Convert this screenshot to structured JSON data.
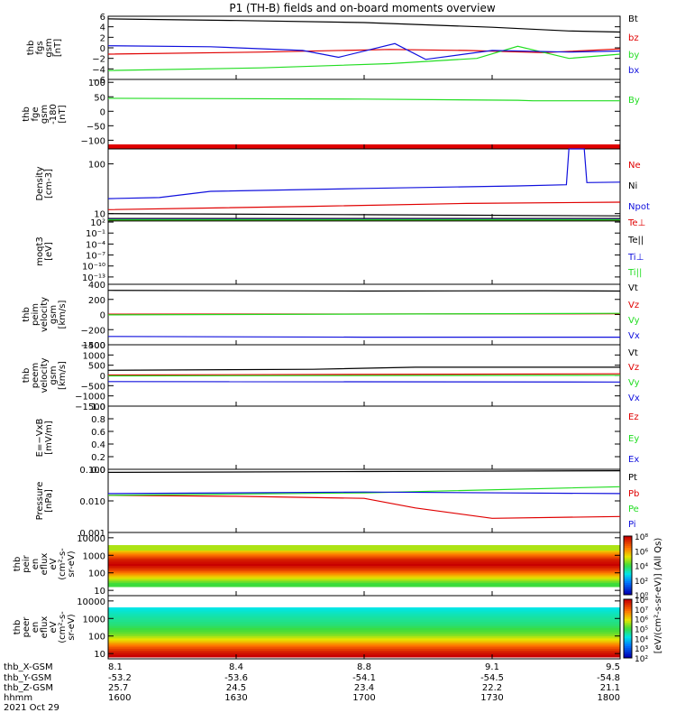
{
  "title": "P1 (TH-B) fields and on-board moments overview",
  "colors": {
    "black": "#000000",
    "red": "#e00000",
    "green": "#22dd22",
    "blue": "#1010dd",
    "darkred": "#bb0000"
  },
  "chart_data": {
    "type": "line",
    "time_range": [
      "16:00",
      "18:00"
    ],
    "panels": [
      {
        "id": "fgs",
        "ylabel_lines": [
          "thb",
          "fgs",
          "gsm",
          "[nT]"
        ],
        "ylim": [
          -6,
          6
        ],
        "ticks": [
          "6",
          "4",
          "2",
          "0",
          "−2",
          "−4",
          "−6"
        ],
        "tick_values": [
          6,
          4,
          2,
          0,
          -2,
          -4,
          -6
        ],
        "series": [
          {
            "name": "Bt",
            "color": "black",
            "points": [
              [
                0,
                5.5
              ],
              [
                0.25,
                5.2
              ],
              [
                0.5,
                4.8
              ],
              [
                0.75,
                3.9
              ],
              [
                0.9,
                3.2
              ],
              [
                1,
                3.0
              ]
            ]
          },
          {
            "name": "bz",
            "color": "red",
            "points": [
              [
                0,
                -1.2
              ],
              [
                0.3,
                -0.8
              ],
              [
                0.55,
                -0.3
              ],
              [
                0.7,
                -0.5
              ],
              [
                0.85,
                -0.9
              ],
              [
                1,
                -0.2
              ]
            ]
          },
          {
            "name": "by",
            "color": "green",
            "points": [
              [
                0,
                -4.3
              ],
              [
                0.3,
                -3.8
              ],
              [
                0.55,
                -3.0
              ],
              [
                0.72,
                -2.0
              ],
              [
                0.8,
                0.3
              ],
              [
                0.9,
                -2.0
              ],
              [
                1,
                -1.2
              ]
            ]
          },
          {
            "name": "bx",
            "color": "blue",
            "points": [
              [
                0,
                0.4
              ],
              [
                0.2,
                0.2
              ],
              [
                0.38,
                -0.5
              ],
              [
                0.45,
                -1.8
              ],
              [
                0.56,
                0.8
              ],
              [
                0.62,
                -2.2
              ],
              [
                0.75,
                -0.5
              ],
              [
                0.9,
                -0.8
              ],
              [
                1,
                -0.6
              ]
            ]
          }
        ]
      },
      {
        "id": "fge",
        "ylabel_lines": [
          "thb",
          "fge",
          "gsm",
          "-180",
          "[nT]"
        ],
        "ylim": [
          -130,
          110
        ],
        "ticks": [
          "100",
          "50",
          "0",
          "−50",
          "−100"
        ],
        "tick_values": [
          100,
          50,
          0,
          -50,
          -100
        ],
        "series": [
          {
            "name": "By",
            "color": "green",
            "points": [
              [
                0,
                45
              ],
              [
                0.5,
                42
              ],
              [
                0.8,
                38
              ],
              [
                0.83,
                36
              ],
              [
                1,
                36
              ]
            ]
          }
        ]
      },
      {
        "id": "density",
        "ylabel_lines": [
          "Density",
          "[cm-3]"
        ],
        "log": true,
        "ylim": [
          8,
          200
        ],
        "ticks": [
          "100",
          "10"
        ],
        "tick_values": [
          100,
          10
        ],
        "series": [
          {
            "name": "Ne",
            "color": "red",
            "points": [
              [
                0,
                12
              ],
              [
                0.4,
                14
              ],
              [
                0.7,
                16
              ],
              [
                1,
                17
              ]
            ]
          },
          {
            "name": "Ni",
            "color": "black",
            "points": [
              [
                0,
                10
              ],
              [
                0.5,
                9.5
              ],
              [
                1,
                9
              ]
            ]
          },
          {
            "name": "Npot",
            "color": "blue",
            "points": [
              [
                0,
                20
              ],
              [
                0.1,
                21
              ],
              [
                0.2,
                28
              ],
              [
                0.5,
                32
              ],
              [
                0.8,
                36
              ],
              [
                0.895,
                38
              ],
              [
                0.9,
                200
              ],
              [
                0.93,
                200
              ],
              [
                0.935,
                42
              ],
              [
                1,
                43
              ]
            ]
          }
        ]
      },
      {
        "id": "moqt",
        "ylabel_lines": [
          "moqt3",
          "[eV]"
        ],
        "log": true,
        "ylim": [
          1e-15,
          1000.0
        ],
        "ticks": [
          "10²",
          "10⁻¹",
          "10⁻⁴",
          "10⁻⁷",
          "10⁻¹⁰",
          "10⁻¹³"
        ],
        "tick_values": [
          100,
          0.1,
          0.0001,
          1e-07,
          1e-10,
          1e-13
        ],
        "series": [
          {
            "name": "Te⊥",
            "color": "red",
            "points": [
              [
                0,
                300
              ],
              [
                1,
                300
              ]
            ]
          },
          {
            "name": "Te||",
            "color": "black",
            "points": [
              [
                0,
                200
              ],
              [
                1,
                200
              ]
            ]
          },
          {
            "name": "Ti⊥",
            "color": "blue",
            "points": [
              [
                0,
                500
              ],
              [
                1,
                500
              ]
            ]
          },
          {
            "name": "Ti||",
            "color": "green",
            "points": [
              [
                0,
                400
              ],
              [
                1,
                400
              ]
            ]
          }
        ]
      },
      {
        "id": "peim",
        "ylabel_lines": [
          "thb",
          "peim",
          "velocity",
          "gsm",
          "[km/s]"
        ],
        "ylim": [
          -400,
          400
        ],
        "ticks": [
          "400",
          "200",
          "0",
          "−200",
          "−400"
        ],
        "tick_values": [
          400,
          200,
          0,
          -200,
          -400
        ],
        "series": [
          {
            "name": "Vt",
            "color": "black",
            "points": [
              [
                0,
                320
              ],
              [
                0.5,
                310
              ],
              [
                0.85,
                315
              ],
              [
                1,
                310
              ]
            ]
          },
          {
            "name": "Vz",
            "color": "red",
            "points": [
              [
                0,
                5
              ],
              [
                1,
                10
              ]
            ]
          },
          {
            "name": "Vy",
            "color": "green",
            "points": [
              [
                0,
                -5
              ],
              [
                1,
                15
              ]
            ]
          },
          {
            "name": "Vx",
            "color": "blue",
            "points": [
              [
                0,
                -290
              ],
              [
                0.5,
                -300
              ],
              [
                1,
                -300
              ]
            ]
          }
        ]
      },
      {
        "id": "peem",
        "ylabel_lines": [
          "thb",
          "peem",
          "velocity",
          "gsm",
          "[km/s]"
        ],
        "ylim": [
          -1500,
          1500
        ],
        "ticks": [
          "1500",
          "1000",
          "500",
          "0",
          "−500",
          "−1000",
          "−1500"
        ],
        "tick_values": [
          1500,
          1000,
          500,
          0,
          -500,
          -1000,
          -1500
        ],
        "series": [
          {
            "name": "Vt",
            "color": "black",
            "points": [
              [
                0,
                250
              ],
              [
                0.4,
                300
              ],
              [
                0.6,
                400
              ],
              [
                1,
                400
              ]
            ]
          },
          {
            "name": "Vz",
            "color": "red",
            "points": [
              [
                0,
                20
              ],
              [
                1,
                80
              ]
            ]
          },
          {
            "name": "Vy",
            "color": "green",
            "points": [
              [
                0,
                -20
              ],
              [
                1,
                10
              ]
            ]
          },
          {
            "name": "Vx",
            "color": "blue",
            "points": [
              [
                0,
                -300
              ],
              [
                1,
                -320
              ]
            ]
          }
        ]
      },
      {
        "id": "efield",
        "ylabel_lines": [
          "E=−VxB",
          "[mV/m]"
        ],
        "ylim": [
          0,
          1
        ],
        "ticks": [
          "1.0",
          "0.8",
          "0.6",
          "0.4",
          "0.2",
          "0.0"
        ],
        "tick_values": [
          1,
          0.8,
          0.6,
          0.4,
          0.2,
          0
        ],
        "series": [
          {
            "name": "Ez",
            "color": "red",
            "points": []
          },
          {
            "name": "Ey",
            "color": "green",
            "points": []
          },
          {
            "name": "Ex",
            "color": "blue",
            "points": []
          }
        ]
      },
      {
        "id": "pressure",
        "ylabel_lines": [
          "Pressure",
          "[nPa]"
        ],
        "log": true,
        "ylim": [
          0.001,
          0.1
        ],
        "ticks": [
          "0.100",
          "0.010",
          "0.001"
        ],
        "tick_values": [
          0.1,
          0.01,
          0.001
        ],
        "series": [
          {
            "name": "Pt",
            "color": "black",
            "points": [
              [
                0,
                0.08
              ],
              [
                0.5,
                0.085
              ],
              [
                1,
                0.09
              ]
            ]
          },
          {
            "name": "Pb",
            "color": "red",
            "points": [
              [
                0,
                0.015
              ],
              [
                0.25,
                0.014
              ],
              [
                0.5,
                0.012
              ],
              [
                0.6,
                0.006
              ],
              [
                0.75,
                0.0028
              ],
              [
                1,
                0.0032
              ]
            ]
          },
          {
            "name": "Pe",
            "color": "green",
            "points": [
              [
                0,
                0.015
              ],
              [
                0.5,
                0.018
              ],
              [
                1,
                0.028
              ]
            ]
          },
          {
            "name": "Pi",
            "color": "blue",
            "points": [
              [
                0,
                0.017
              ],
              [
                0.5,
                0.019
              ],
              [
                1,
                0.017
              ]
            ]
          }
        ]
      }
    ],
    "spectrograms": [
      {
        "id": "peir",
        "ylabel_lines": [
          "thb",
          "peir",
          "en",
          "eflux",
          "eV",
          "(cm²-s-",
          "sr-eV)"
        ],
        "ylim": [
          5,
          20000
        ],
        "ticks": [
          "10000",
          "1000",
          "100",
          "10"
        ],
        "tick_values": [
          10000,
          1000,
          100,
          10
        ],
        "log": true
      },
      {
        "id": "peer",
        "ylabel_lines": [
          "thb",
          "peer",
          "en",
          "eflux",
          "eV",
          "(cm²-s-",
          "sr-eV)"
        ],
        "ylim": [
          5,
          20000
        ],
        "ticks": [
          "10000",
          "1000",
          "100",
          "10"
        ],
        "tick_values": [
          10000,
          1000,
          100,
          10
        ],
        "log": true
      }
    ],
    "colorbars": [
      {
        "ticks": [
          "10⁸",
          "10⁶",
          "10⁴",
          "10²",
          "10⁰"
        ]
      },
      {
        "ticks": [
          "10⁸",
          "10⁷",
          "10⁶",
          "10⁵",
          "10⁴",
          "10³",
          "10²"
        ]
      }
    ],
    "colorbar_label": "[eV/(cm²-s-sr-eV)] (All Qs)",
    "footer": {
      "labels": [
        "thb_X-GSM",
        "thb_Y-GSM",
        "thb_Z-GSM",
        "hhmm",
        "2021 Oct 29"
      ],
      "columns": [
        [
          "8.1",
          "-53.2",
          "25.7",
          "1600"
        ],
        [
          "8.4",
          "-53.6",
          "24.5",
          "1630"
        ],
        [
          "8.8",
          "-54.1",
          "23.4",
          "1700"
        ],
        [
          "9.1",
          "-54.5",
          "22.2",
          "1730"
        ],
        [
          "9.5",
          "-54.8",
          "21.1",
          "1800"
        ]
      ]
    }
  }
}
